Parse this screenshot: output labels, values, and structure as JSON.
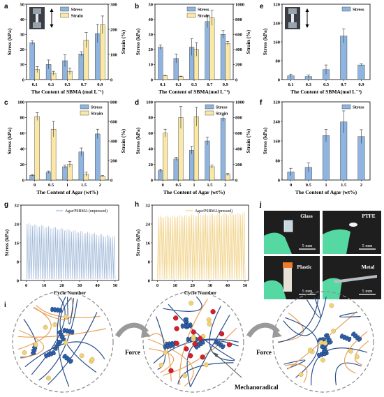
{
  "figure": {
    "panel_labels": [
      "a",
      "b",
      "c",
      "d",
      "e",
      "f",
      "g",
      "h",
      "i",
      "j"
    ]
  },
  "chart_data": [
    {
      "id": "a",
      "type": "bar",
      "categories": [
        "0.1",
        "0.3",
        "0.5",
        "0.7",
        "0.9"
      ],
      "xlabel": "The Content of SBMA (mol L⁻¹)",
      "ylabel": "Stress (kPa)",
      "ylabel_right": "Strain (%)",
      "ylim": [
        0,
        50
      ],
      "ylim_right": [
        0,
        300
      ],
      "yticks": [
        0,
        10,
        20,
        30,
        40,
        50
      ],
      "yticks_right": [
        0,
        100,
        200,
        300
      ],
      "series": [
        {
          "name": "Stress",
          "axis": "left",
          "color": "#8eb4df",
          "values": [
            24.5,
            10,
            12.5,
            17,
            30.5
          ],
          "errors": [
            1.2,
            3,
            4,
            1.5,
            6
          ]
        },
        {
          "name": "Strain",
          "axis": "right",
          "color": "#fbe8a6",
          "values": [
            40,
            25,
            33,
            157,
            218
          ],
          "errors": [
            12,
            8,
            12,
            30,
            35
          ]
        }
      ],
      "legend": "top-center",
      "inset_photo": true
    },
    {
      "id": "b",
      "type": "bar",
      "categories": [
        "0.1",
        "0.3",
        "0.5",
        "0.7",
        "0.9"
      ],
      "xlabel": "The Content of SBMA(mol L⁻¹)",
      "ylabel": "Stress (kPa)",
      "ylabel_right": "Strain (%)",
      "ylim": [
        0,
        50
      ],
      "ylim_right": [
        0,
        1000
      ],
      "yticks": [
        0,
        10,
        20,
        30,
        40,
        50
      ],
      "yticks_right": [
        0,
        200,
        400,
        600,
        800,
        1000
      ],
      "series": [
        {
          "name": "Stress",
          "axis": "left",
          "color": "#8eb4df",
          "values": [
            21.5,
            14,
            21.5,
            38.5,
            30
          ],
          "errors": [
            1.5,
            3,
            5.5,
            4,
            2.5
          ]
        },
        {
          "name": "Strain",
          "axis": "right",
          "color": "#fbe8a6",
          "values": [
            50,
            40,
            400,
            820,
            480
          ],
          "errors": [
            5,
            5,
            90,
            100,
            25
          ]
        }
      ],
      "legend": "top-center"
    },
    {
      "id": "e",
      "type": "bar",
      "categories": [
        "0.1",
        "0.3",
        "0.5",
        "0.7",
        "0.9"
      ],
      "xlabel": "The Content of  SBMA(mol L⁻¹)",
      "ylabel": "Stress (kPa)",
      "ylim": [
        0,
        320
      ],
      "yticks": [
        0,
        80,
        160,
        240,
        320
      ],
      "series": [
        {
          "name": "Stress",
          "axis": "left",
          "color": "#8eb4df",
          "values": [
            16,
            13,
            42,
            185,
            62
          ],
          "errors": [
            7,
            7,
            20,
            30,
            5
          ]
        }
      ],
      "legend": "top-right",
      "inset_photo": true
    },
    {
      "id": "c",
      "type": "bar",
      "categories": [
        "0",
        "0.5",
        "1",
        "1.5",
        "2"
      ],
      "xlabel": "The Content of Agar (wt%)",
      "ylabel": "Stress (kPa)",
      "ylabel_right": "Strain (%)",
      "ylim": [
        0,
        100
      ],
      "ylim_right": [
        0,
        800
      ],
      "yticks": [
        0,
        20,
        40,
        60,
        80,
        100
      ],
      "yticks_right": [
        0,
        200,
        400,
        600,
        800
      ],
      "series": [
        {
          "name": "Stress",
          "axis": "left",
          "color": "#8eb4df",
          "values": [
            6,
            10,
            17,
            36,
            59
          ],
          "errors": [
            1,
            1.5,
            2,
            5,
            6
          ]
        },
        {
          "name": "Strain",
          "axis": "right",
          "color": "#fbe8a6",
          "values": [
            650,
            520,
            160,
            60,
            40
          ],
          "errors": [
            40,
            80,
            30,
            20,
            6
          ]
        }
      ],
      "legend": "top-right"
    },
    {
      "id": "d",
      "type": "bar",
      "categories": [
        "0",
        "0.5",
        "1",
        "1.5",
        "2"
      ],
      "xlabel": "The Content of Agar (wt%)",
      "ylabel": "Stress (kPa)",
      "ylabel_right": "Strain (%)",
      "ylim": [
        0,
        100
      ],
      "ylim_right": [
        0,
        1000
      ],
      "yticks": [
        0,
        20,
        40,
        60,
        80,
        100
      ],
      "yticks_right": [
        0,
        200,
        400,
        600,
        800,
        1000
      ],
      "series": [
        {
          "name": "Stress",
          "axis": "left",
          "color": "#8eb4df",
          "values": [
            12,
            27,
            38,
            50,
            79
          ],
          "errors": [
            2,
            2,
            5,
            5,
            4
          ]
        },
        {
          "name": "Strain",
          "axis": "right",
          "color": "#fbe8a6",
          "values": [
            600,
            800,
            810,
            170,
            70
          ],
          "errors": [
            50,
            140,
            120,
            20,
            15
          ]
        }
      ],
      "legend": "top-right"
    },
    {
      "id": "f",
      "type": "bar",
      "categories": [
        "0",
        "0.5",
        "1",
        "1.5",
        "2"
      ],
      "xlabel": "The Content of Agar (wt%)",
      "ylabel": "Stress (kPa)",
      "ylim": [
        0,
        320
      ],
      "yticks": [
        0,
        80,
        160,
        240,
        320
      ],
      "series": [
        {
          "name": "Stress",
          "axis": "left",
          "color": "#8eb4df",
          "values": [
            33,
            52,
            182,
            238,
            178
          ],
          "errors": [
            15,
            18,
            25,
            45,
            28
          ]
        }
      ],
      "legend": "top-right"
    },
    {
      "id": "g",
      "type": "line",
      "xlabel": "Cycle Number",
      "ylabel": "Stress (kPa)",
      "xlim": [
        -3,
        52
      ],
      "ylim": [
        0,
        32
      ],
      "xticks": [
        0,
        10,
        20,
        30,
        40,
        50
      ],
      "yticks": [
        0,
        8,
        16,
        24,
        32
      ],
      "cycles": 50,
      "peak_start": 24,
      "peak_end": 18.5,
      "series": [
        {
          "name": "Agar/PSBMA (unpressed)",
          "color": "#9fb8d8"
        }
      ],
      "legend": "top-right"
    },
    {
      "id": "h",
      "type": "line",
      "xlabel": "Cycle Number",
      "ylabel": "Stress (kPa)",
      "xlim": [
        -3,
        52
      ],
      "ylim": [
        0,
        32
      ],
      "xticks": [
        0,
        10,
        20,
        30,
        40,
        50
      ],
      "yticks": [
        0,
        8,
        16,
        24,
        32
      ],
      "cycles": 50,
      "peak_start": 27,
      "peak_end": 28.5,
      "series": [
        {
          "name": "Agar/PSBMA(pressed)",
          "color": "#f0d083"
        }
      ],
      "legend": "top-right"
    }
  ],
  "panel_j": {
    "photos": [
      {
        "label": "Glass",
        "scale": "5 mm"
      },
      {
        "label": "PTFE",
        "scale": "5 mm"
      },
      {
        "label": "Plastic",
        "scale": "5 mm"
      },
      {
        "label": "Metal",
        "scale": "5 mm"
      }
    ]
  },
  "panel_i": {
    "arrow_labels": [
      "Force",
      "Force"
    ],
    "callout": "Mechanoradical"
  }
}
